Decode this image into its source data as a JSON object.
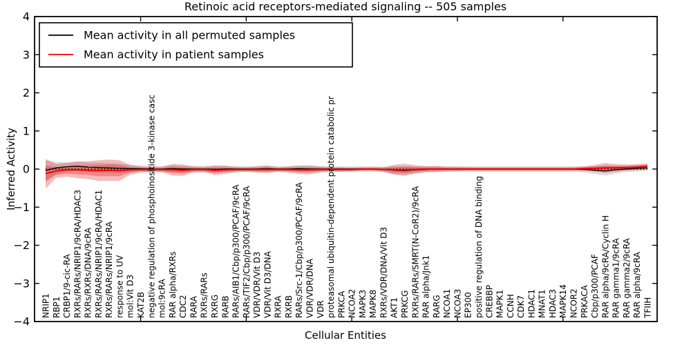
{
  "chart_data": {
    "type": "line",
    "title": "Retinoic acid receptors-mediated signaling -- 505 samples",
    "xlabel": "Cellular Entities",
    "ylabel": "Inferred Activity",
    "ylim": [
      -4,
      4
    ],
    "y_ticks": [
      4,
      3,
      2,
      1,
      0,
      -1,
      -2,
      -3,
      -4
    ],
    "y_tick_labels": [
      "4",
      "3",
      "2",
      "1",
      "0",
      "−1",
      "−2",
      "−3",
      "−4"
    ],
    "x_ticks": [
      10,
      20,
      30,
      40,
      50
    ],
    "grid": false,
    "legend_position": "upper left",
    "categories": [
      "NRIP1",
      "RBP1",
      "CRBP1/9-cic-RA",
      "RXRs/RARs/NRIP1/9cRA/HDAC3",
      "RXRs/RXRs/DNA/9cRA",
      "RXRs/RARs/NRIP1/9cRA/HDAC1",
      "RXRs/RARs/NRIP1/9cRA",
      "response to UV",
      "mol:Vit D3",
      "KAT2B",
      "negative regulation of phosphoinositide 3-kinase casc",
      "mol:9cRA",
      "RAR alpha/RXRs",
      "CDC2",
      "RARA",
      "RXRs/RARs",
      "RXRG",
      "RARB",
      "RARs/AIB1/Cbp/p300/PCAF/9cRA",
      "RARs/TIF2/Cbp/p300/PCAF/9cRA",
      "VDR/VDR/Vit D3",
      "VDR/Vit D3/DNA",
      "RXRA",
      "RXRB",
      "RARs/Src-1/Cbp/p300/PCAF/9cRA",
      "VDR/VDR/DNA",
      "VDR",
      "proteasomal ubiquitin-dependent protein catabolic pr",
      "PRKCA",
      "NCOA2",
      "MAPK3",
      "MAPK8",
      "RXRs/VDR/DNA/Vit D3",
      "AKT1",
      "PRKCG",
      "RXRs/RARs/SMRT(N-CoR2)/9cRA",
      "RAR alpha/Jnk1",
      "RARG",
      "NCOA1",
      "NCOA3",
      "EP300",
      "positive regulation of DNA binding",
      "CREBBP",
      "MAPK1",
      "CCNH",
      "CDK7",
      "HDAC1",
      "MNAT1",
      "HDAC3",
      "MAPK14",
      "NCOR2",
      "PRKACA",
      "Cbp/p300/PCAF",
      "RAR alpha/9cRA/Cyclin H",
      "RAR gamma1/9cRA",
      "RAR gamma2/9cRA",
      "RAR alpha/9cRA",
      "TFIIH"
    ],
    "series": [
      {
        "name": "Mean activity in all permuted samples",
        "color": "#000000",
        "band_color": "#808080",
        "values": [
          -0.04,
          0.03,
          0.06,
          0.07,
          0.05,
          0.04,
          0.03,
          0.02,
          0.01,
          0.01,
          0.0,
          0.0,
          0.01,
          0.0,
          0.0,
          0.0,
          -0.01,
          0.0,
          0.0,
          0.0,
          0.0,
          0.01,
          0.0,
          0.0,
          0.01,
          0.0,
          0.0,
          0.0,
          0.0,
          0.0,
          0.0,
          0.0,
          -0.01,
          -0.03,
          -0.04,
          -0.02,
          -0.01,
          0.0,
          0.0,
          0.0,
          0.0,
          0.0,
          0.0,
          0.0,
          0.0,
          0.0,
          0.0,
          0.0,
          0.0,
          0.0,
          0.0,
          -0.01,
          -0.03,
          -0.05,
          -0.02,
          0.0,
          0.02,
          0.03
        ],
        "band_halfwidth": [
          0.26,
          0.16,
          0.12,
          0.12,
          0.12,
          0.13,
          0.13,
          0.12,
          0.1,
          0.08,
          0.08,
          0.08,
          0.09,
          0.09,
          0.08,
          0.08,
          0.09,
          0.08,
          0.08,
          0.07,
          0.08,
          0.08,
          0.07,
          0.07,
          0.08,
          0.08,
          0.07,
          0.07,
          0.07,
          0.07,
          0.07,
          0.07,
          0.07,
          0.1,
          0.11,
          0.09,
          0.08,
          0.08,
          0.07,
          0.07,
          0.07,
          0.07,
          0.07,
          0.07,
          0.07,
          0.07,
          0.07,
          0.07,
          0.07,
          0.07,
          0.07,
          0.08,
          0.1,
          0.12,
          0.1,
          0.08,
          0.08,
          0.08
        ]
      },
      {
        "name": "Mean activity in patient samples",
        "color": "#f40000",
        "band_color": "#dc1e1e",
        "values": [
          -0.12,
          -0.05,
          -0.02,
          -0.02,
          -0.03,
          -0.04,
          -0.03,
          -0.04,
          -0.02,
          -0.01,
          -0.01,
          -0.01,
          -0.02,
          -0.03,
          -0.01,
          -0.01,
          -0.03,
          -0.02,
          -0.01,
          -0.01,
          -0.01,
          -0.01,
          -0.01,
          -0.01,
          -0.02,
          -0.02,
          -0.01,
          -0.01,
          -0.01,
          -0.01,
          0.0,
          0.0,
          -0.01,
          -0.02,
          -0.02,
          -0.01,
          0.0,
          0.0,
          0.0,
          0.0,
          0.0,
          0.0,
          0.0,
          0.0,
          0.0,
          0.0,
          0.0,
          0.0,
          0.0,
          0.0,
          0.0,
          0.01,
          0.02,
          0.03,
          0.03,
          0.04,
          0.05,
          0.07
        ],
        "band_halfwidth": [
          0.39,
          0.18,
          0.18,
          0.22,
          0.23,
          0.27,
          0.28,
          0.27,
          0.13,
          0.08,
          0.07,
          0.07,
          0.15,
          0.15,
          0.08,
          0.07,
          0.13,
          0.11,
          0.07,
          0.06,
          0.08,
          0.1,
          0.06,
          0.08,
          0.11,
          0.12,
          0.08,
          0.06,
          0.06,
          0.05,
          0.05,
          0.05,
          0.06,
          0.13,
          0.16,
          0.11,
          0.08,
          0.08,
          0.06,
          0.06,
          0.05,
          0.05,
          0.05,
          0.05,
          0.05,
          0.05,
          0.05,
          0.05,
          0.05,
          0.05,
          0.05,
          0.06,
          0.09,
          0.13,
          0.1,
          0.08,
          0.08,
          0.08
        ]
      }
    ],
    "reference_line": {
      "y": 0,
      "style": "dotted",
      "color": "#000000"
    }
  },
  "legend": {
    "entries": [
      {
        "label": "Mean activity in all permuted samples",
        "color": "#000000"
      },
      {
        "label": "Mean activity in patient samples",
        "color": "#f40000"
      }
    ]
  }
}
